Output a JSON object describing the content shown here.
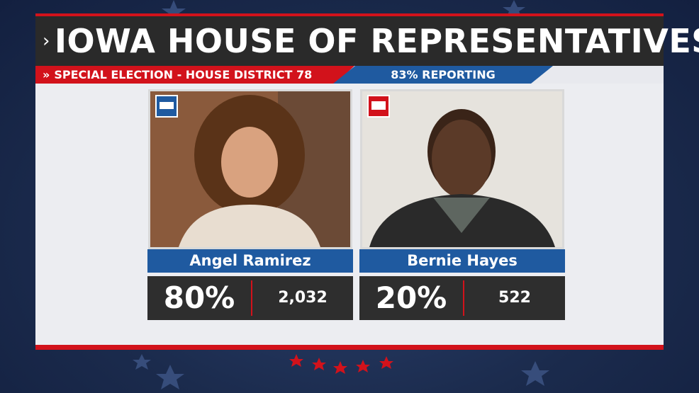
{
  "header": {
    "title": "IOWA HOUSE OF REPRESENTATIVES",
    "subtitle": "SPECIAL ELECTION - HOUSE DISTRICT 78",
    "reporting": "83% REPORTING"
  },
  "candidates": [
    {
      "name": "Angel Ramirez",
      "percent": "80%",
      "votes": "2,032"
    },
    {
      "name": "Bernie Hayes",
      "percent": "20%",
      "votes": "522"
    }
  ]
}
